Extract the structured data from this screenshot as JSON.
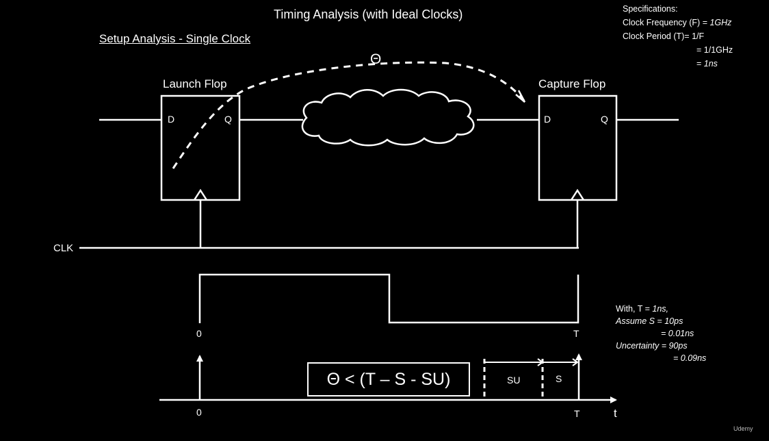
{
  "title": "Timing Analysis (with Ideal Clocks)",
  "subtitle": "Setup Analysis - Single Clock",
  "specs": {
    "heading": "Specifications:",
    "freq_label": "Clock Frequency (F) = ",
    "freq_value": "1GHz",
    "period_label": "Clock Period (T)= 1/F",
    "period_line2": "= 1/1GHz",
    "period_line3_prefix": "= ",
    "period_line3_value": "1ns"
  },
  "theta_symbol": "Θ",
  "launch_flop": {
    "label": "Launch Flop",
    "d_pin": "D",
    "q_pin": "Q"
  },
  "capture_flop": {
    "label": "Capture Flop",
    "d_pin": "D",
    "q_pin": "Q"
  },
  "clock_net": "CLK",
  "waveform": {
    "start_label": "0",
    "end_label": "T"
  },
  "timeline": {
    "start_label": "0",
    "end_label": "T",
    "axis_label": "t",
    "su_label": "SU",
    "s_label": "S"
  },
  "formula": "Θ < (T – S - SU)",
  "assumptions": {
    "line1_prefix": "With, T = ",
    "line1_value": "1ns,",
    "line2": "Assume S = 10ps",
    "line3": "= 0.01ns",
    "line4": "Uncertainty = 90ps",
    "line5": "= 0.09ns"
  },
  "watermark": "Udemy",
  "colors": {
    "background": "#000000",
    "foreground": "#ffffff"
  }
}
